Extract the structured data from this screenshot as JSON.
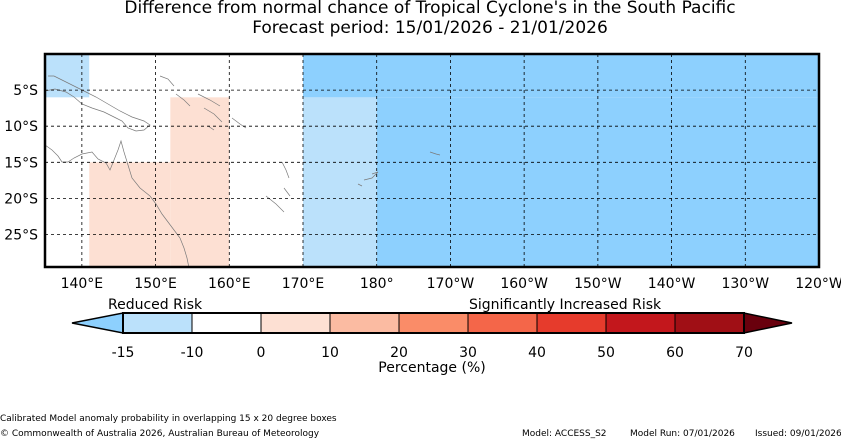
{
  "title": "Difference from normal chance of Tropical Cyclone's in the South Pacific",
  "subtitle": "Forecast period: 15/01/2026 - 21/01/2026",
  "map": {
    "lat_ticks": [
      "5°S",
      "10°S",
      "15°S",
      "20°S",
      "25°S"
    ],
    "lon_ticks": [
      "140°E",
      "150°E",
      "160°E",
      "170°E",
      "180°",
      "170°W",
      "160°W",
      "150°W",
      "140°W",
      "130°W",
      "120°W"
    ],
    "lon_range": [
      135,
      240
    ],
    "lat_range": [
      0,
      -29.5
    ],
    "grid": true,
    "probability_boxes": [
      {
        "lon": [
          135,
          141
        ],
        "lat": [
          0,
          -6
        ],
        "category": "-15 to -10"
      },
      {
        "lon": [
          141,
          152
        ],
        "lat": [
          -15,
          -29.5
        ],
        "category": "0 to 10"
      },
      {
        "lon": [
          152,
          160
        ],
        "lat": [
          -6,
          -29.5
        ],
        "category": "0 to 10"
      },
      {
        "lon": [
          170,
          180
        ],
        "lat": [
          -6,
          -29.5
        ],
        "category": "-15 to -10"
      },
      {
        "lon": [
          170,
          240
        ],
        "lat": [
          0,
          -6
        ],
        "category": "below -15"
      },
      {
        "lon": [
          180,
          240
        ],
        "lat": [
          -6,
          -29.5
        ],
        "category": "below -15"
      }
    ]
  },
  "colorbar": {
    "left_label": "Reduced Risk",
    "right_label": "Significantly Increased Risk",
    "ticks": [
      "-15",
      "-10",
      "0",
      "10",
      "20",
      "30",
      "40",
      "50",
      "60",
      "70"
    ],
    "colors": [
      "#bbe1fb",
      "#ffffff",
      "#fde0d3",
      "#fbbba2",
      "#fa8c68",
      "#f46649",
      "#e63b2c",
      "#c3171c",
      "#a00f15"
    ],
    "under_color": "#8dd0fe",
    "over_color": "#69000d",
    "xlabel": "Percentage (%)"
  },
  "footer": {
    "method": "Calibrated Model anomaly probability in overlapping 15 x 20 degree boxes",
    "copyright": "© Commonwealth of Australia 2026, Australian Bureau of Meteorology",
    "model": "Model: ACCESS_S2",
    "model_run": "Model Run: 07/01/2026",
    "issued": "Issued: 09/01/2026"
  }
}
